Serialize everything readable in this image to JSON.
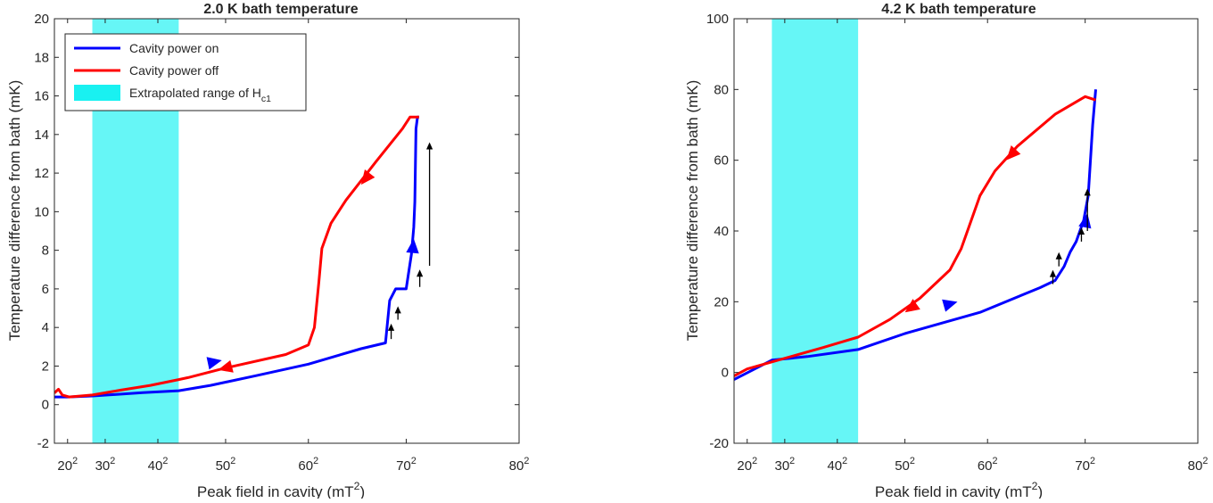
{
  "chart_data": [
    {
      "type": "line",
      "title": "2.0 K bath temperature",
      "xlabel": "Peak field in cavity (mT²)",
      "ylabel": "Temperature difference from bath (mK)",
      "x_scale": "quadratic (tick labels are field values squared)",
      "xlim": [
        225,
        6400
      ],
      "ylim": [
        -2,
        20
      ],
      "xticks": [
        400,
        900,
        1600,
        2500,
        3600,
        4900,
        6400
      ],
      "xtick_labels": [
        "20²",
        "30²",
        "40²",
        "50²",
        "60²",
        "70²",
        "80²"
      ],
      "yticks": [
        -2,
        0,
        2,
        4,
        6,
        8,
        10,
        12,
        14,
        16,
        18,
        20
      ],
      "ytick_labels": [
        "-2",
        "0",
        "2",
        "4",
        "6",
        "8",
        "10",
        "12",
        "14",
        "16",
        "18",
        "20"
      ],
      "grid": false,
      "legend_placement": "top-left",
      "shaded_band": {
        "label": "Extrapolated range of H_c1",
        "x_range": [
          729,
          1877
        ],
        "color": "#00f0f0"
      },
      "series": [
        {
          "name": "Cavity power on",
          "color": "#0000ff",
          "x": [
            225,
            400,
            729,
            1000,
            1400,
            1877,
            2300,
            2900,
            3600,
            4300,
            4624,
            4680,
            4760,
            4900,
            4970,
            5000,
            5015,
            5030,
            5050,
            5070
          ],
          "y": [
            0.4,
            0.4,
            0.45,
            0.52,
            0.62,
            0.72,
            1.0,
            1.5,
            2.1,
            2.9,
            3.2,
            5.4,
            6.0,
            6.0,
            7.8,
            9.2,
            10.5,
            14.3,
            14.9,
            14.9
          ]
        },
        {
          "name": "Cavity power off",
          "color": "#ff0000",
          "x": [
            5070,
            4950,
            4850,
            4500,
            4100,
            3900,
            3780,
            3740,
            3680,
            3600,
            3300,
            2500,
            2000,
            1877,
            1500,
            1100,
            729,
            420,
            330,
            280,
            225
          ],
          "y": [
            14.9,
            14.9,
            14.3,
            12.6,
            10.6,
            9.4,
            8.1,
            6.4,
            4.0,
            3.1,
            2.6,
            1.9,
            1.4,
            1.3,
            1.0,
            0.75,
            0.5,
            0.4,
            0.5,
            0.8,
            0.6
          ]
        }
      ],
      "direction_arrows": [
        {
          "series": "Cavity power on",
          "x": 2450,
          "y": 2.3
        },
        {
          "series": "Cavity power on",
          "x": 5000,
          "y": 8.6
        },
        {
          "series": "Cavity power off",
          "x": 2400,
          "y": 1.8
        },
        {
          "series": "Cavity power off",
          "x": 4300,
          "y": 11.4
        }
      ],
      "jump_arrows": [
        {
          "x": 4700,
          "y0": 3.4,
          "y1": 4.2
        },
        {
          "x": 4790,
          "y0": 4.4,
          "y1": 5.1
        },
        {
          "x": 5080,
          "y0": 6.1,
          "y1": 7.0
        },
        {
          "x": 5210,
          "y0": 7.2,
          "y1": 13.6
        }
      ],
      "legend": [
        {
          "label": "Cavity power on",
          "color": "#0000ff"
        },
        {
          "label": "Cavity power off",
          "color": "#ff0000"
        },
        {
          "label": "Extrapolated range of H",
          "subscript": "c1",
          "color": "#00f0f0"
        }
      ]
    },
    {
      "type": "line",
      "title": "4.2 K bath temperature",
      "xlabel": "Peak field in cavity (mT²)",
      "ylabel": "Temperature difference from bath (mK)",
      "x_scale": "quadratic (tick labels are field values squared)",
      "xlim": [
        225,
        6400
      ],
      "ylim": [
        -20,
        100
      ],
      "xticks": [
        400,
        900,
        1600,
        2500,
        3600,
        4900,
        6400
      ],
      "xtick_labels": [
        "20²",
        "30²",
        "40²",
        "50²",
        "60²",
        "70²",
        "80²"
      ],
      "yticks": [
        -20,
        0,
        20,
        40,
        60,
        80,
        100
      ],
      "ytick_labels": [
        "-20",
        "0",
        "20",
        "40",
        "60",
        "80",
        "100"
      ],
      "grid": false,
      "shaded_band": {
        "label": "Extrapolated range of H_c1",
        "x_range": [
          729,
          1877
        ],
        "color": "#00f0f0"
      },
      "series": [
        {
          "name": "Cavity power on",
          "color": "#0000ff",
          "x": [
            225,
            500,
            729,
            1200,
            1877,
            2500,
            3000,
            3500,
            4300,
            4500,
            4620,
            4700,
            4780,
            4880,
            4940,
            5000,
            5040
          ],
          "y": [
            -2,
            1,
            3.5,
            4.5,
            6.5,
            11,
            14,
            17,
            24,
            26,
            30,
            34,
            37,
            43,
            50,
            70,
            80
          ]
        },
        {
          "name": "Cavity power off",
          "color": "#ff0000",
          "x": [
            5040,
            4900,
            4500,
            4000,
            3700,
            3500,
            3250,
            3100,
            2700,
            2300,
            1877,
            1400,
            729,
            400,
            225
          ],
          "y": [
            77,
            78,
            73,
            64,
            57,
            50,
            35,
            29,
            21,
            15,
            10,
            7,
            3,
            1,
            -1
          ]
        }
      ],
      "direction_arrows": [
        {
          "series": "Cavity power on",
          "x": 3200,
          "y": 20
        },
        {
          "series": "Cavity power on",
          "x": 4930,
          "y": 45
        },
        {
          "series": "Cavity power off",
          "x": 2500,
          "y": 17
        },
        {
          "series": "Cavity power off",
          "x": 3850,
          "y": 60
        }
      ],
      "jump_arrows": [
        {
          "x": 4470,
          "y0": 25,
          "y1": 29
        },
        {
          "x": 4550,
          "y0": 30,
          "y1": 34
        },
        {
          "x": 4850,
          "y0": 37,
          "y1": 41
        },
        {
          "x": 4930,
          "y0": 40,
          "y1": 52
        }
      ]
    }
  ]
}
